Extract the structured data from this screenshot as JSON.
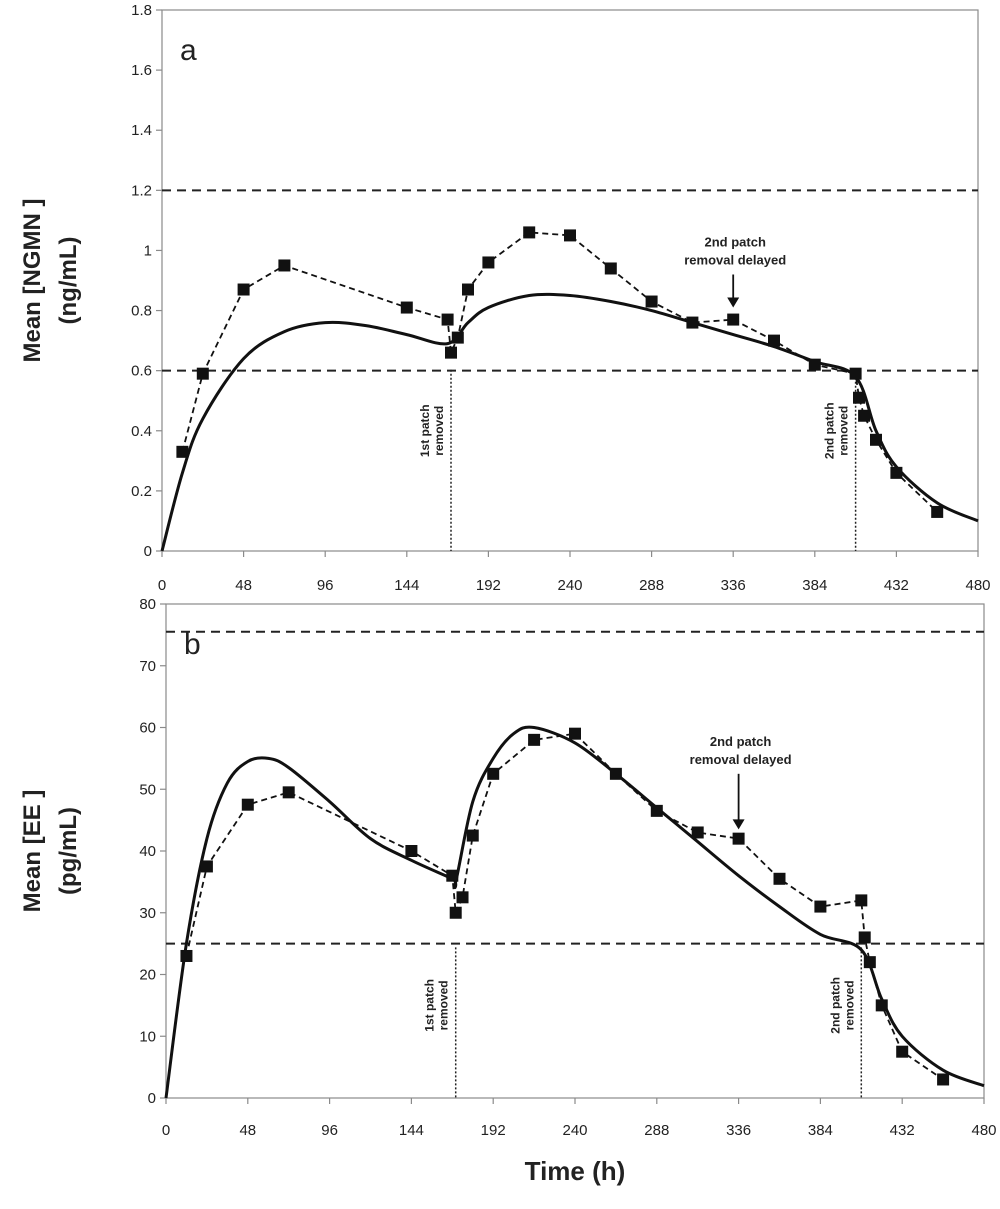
{
  "chart_data": [
    {
      "type": "line",
      "panel_label": "a",
      "xlabel": "",
      "ylabel_line1": "Mean [NGMN ]",
      "ylabel_line2": "(ng/mL)",
      "xlim": [
        0,
        480
      ],
      "ylim": [
        0,
        1.8
      ],
      "xticks": [
        0,
        48,
        96,
        144,
        192,
        240,
        288,
        336,
        384,
        432,
        480
      ],
      "yticks": [
        0,
        0.2,
        0.4,
        0.6,
        0.8,
        1,
        1.2,
        1.4,
        1.6,
        1.8
      ],
      "ytick_labels": [
        "0",
        "0.2",
        "0.4",
        "0.6",
        "0.8",
        "1",
        "1.2",
        "1.4",
        "1.6",
        "1.8"
      ],
      "reference_lines": [
        0.6,
        1.2
      ],
      "observed": {
        "x": [
          12,
          24,
          48,
          72,
          144,
          168,
          170,
          174,
          180,
          192,
          216,
          240,
          264,
          288,
          312,
          336,
          360,
          384,
          408,
          410,
          413,
          420,
          432,
          456
        ],
        "y": [
          0.33,
          0.59,
          0.87,
          0.95,
          0.81,
          0.77,
          0.66,
          0.71,
          0.87,
          0.96,
          1.06,
          1.05,
          0.94,
          0.83,
          0.76,
          0.77,
          0.7,
          0.62,
          0.59,
          0.51,
          0.45,
          0.37,
          0.26,
          0.13
        ]
      },
      "predicted": {
        "x": [
          0,
          12,
          24,
          48,
          72,
          96,
          120,
          144,
          168,
          180,
          192,
          216,
          240,
          264,
          288,
          312,
          336,
          360,
          384,
          408,
          420,
          432,
          456,
          480
        ],
        "y": [
          0,
          0.26,
          0.44,
          0.64,
          0.73,
          0.76,
          0.75,
          0.72,
          0.69,
          0.76,
          0.81,
          0.85,
          0.85,
          0.83,
          0.8,
          0.76,
          0.72,
          0.68,
          0.63,
          0.58,
          0.4,
          0.28,
          0.16,
          0.1
        ]
      },
      "vlines": [
        {
          "x": 170,
          "label_line1": "1st patch",
          "label_line2": "removed"
        },
        {
          "x": 408,
          "label_line1": "2nd patch",
          "label_line2": "removed"
        }
      ],
      "arrow_annotation": {
        "x": 336,
        "y_tip": 0.81,
        "y_top": 0.92,
        "text_line1": "2nd patch",
        "text_line2": "removal delayed"
      }
    },
    {
      "type": "line",
      "panel_label": "b",
      "xlabel": "Time (h)",
      "ylabel_line1": "Mean [EE ]",
      "ylabel_line2": "(pg/mL)",
      "xlim": [
        0,
        480
      ],
      "ylim": [
        0,
        80
      ],
      "xticks": [
        0,
        48,
        96,
        144,
        192,
        240,
        288,
        336,
        384,
        432,
        480
      ],
      "yticks": [
        0,
        10,
        20,
        30,
        40,
        50,
        60,
        70,
        80
      ],
      "ytick_labels": [
        "0",
        "10",
        "20",
        "30",
        "40",
        "50",
        "60",
        "70",
        "80"
      ],
      "reference_lines": [
        25,
        75.5
      ],
      "observed": {
        "x": [
          12,
          24,
          48,
          72,
          144,
          168,
          170,
          174,
          180,
          192,
          216,
          240,
          264,
          288,
          312,
          336,
          360,
          384,
          408,
          410,
          413,
          420,
          432,
          456
        ],
        "y": [
          23,
          37.5,
          47.5,
          49.5,
          40,
          36,
          30,
          32.5,
          42.5,
          52.5,
          58,
          59,
          52.5,
          46.5,
          43,
          42,
          35.5,
          31,
          32,
          26,
          22,
          15,
          7.5,
          3
        ]
      },
      "predicted": {
        "x": [
          0,
          12,
          24,
          36,
          48,
          60,
          72,
          96,
          120,
          144,
          168,
          170,
          180,
          192,
          204,
          216,
          240,
          264,
          288,
          312,
          336,
          360,
          384,
          408,
          420,
          432,
          456,
          480
        ],
        "y": [
          0,
          25,
          42,
          51,
          54.5,
          55,
          53.5,
          48,
          42,
          38.5,
          35.5,
          35,
          48,
          55,
          59,
          60,
          57.5,
          52.5,
          47,
          41.5,
          36,
          31,
          26.5,
          24,
          16,
          10,
          4.5,
          2
        ]
      },
      "vlines": [
        {
          "x": 170,
          "label_line1": "1st patch",
          "label_line2": "removed"
        },
        {
          "x": 408,
          "label_line1": "2nd patch",
          "label_line2": "removed"
        }
      ],
      "arrow_annotation": {
        "x": 336,
        "y_tip": 43.5,
        "y_top": 52.5,
        "text_line1": "2nd patch",
        "text_line2": "removal delayed"
      }
    }
  ]
}
